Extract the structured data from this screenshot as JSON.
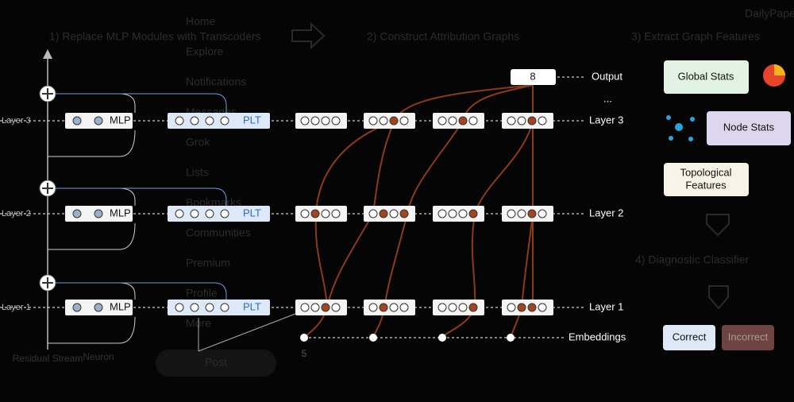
{
  "background_ui": {
    "menu": [
      "Home",
      "Explore",
      "Notifications",
      "Messages",
      "Grok",
      "Lists",
      "Bookmarks",
      "Communities",
      "Premium",
      "Profile",
      "More"
    ],
    "post_button": "Post",
    "sidebar_title": "DailyPapers"
  },
  "steps": {
    "step1": "1) Replace MLP Modules with Transcoders",
    "step2": "2) Construct Attribution Graphs",
    "step3": "3) Extract Graph Features",
    "step4": "4) Diagnostic Classifier"
  },
  "model": {
    "layers": [
      "Layer 3",
      "Layer 2",
      "Layer 1"
    ],
    "mlp": "MLP",
    "plt": "PLT",
    "residual_stream": "Residual Stream",
    "neuron": "Neuron"
  },
  "graph": {
    "output_label": "Output",
    "output_token": "8",
    "ellipsis": "...",
    "layers": [
      "Layer 3",
      "Layer 2",
      "Layer 1"
    ],
    "embeddings": "Embeddings",
    "input_token": "5"
  },
  "features": {
    "global_stats": "Global Stats",
    "node_stats": "Node Stats",
    "topological": [
      "Topological",
      "Features"
    ]
  },
  "classifier": {
    "correct": "Correct",
    "incorrect": "Incorrect"
  }
}
